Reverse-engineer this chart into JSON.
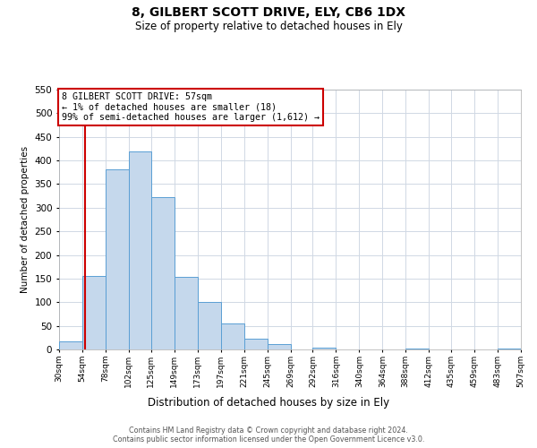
{
  "title": "8, GILBERT SCOTT DRIVE, ELY, CB6 1DX",
  "subtitle": "Size of property relative to detached houses in Ely",
  "xlabel": "Distribution of detached houses by size in Ely",
  "ylabel": "Number of detached properties",
  "bar_color": "#c5d8ec",
  "bar_edge_color": "#5a9fd4",
  "bin_edges": [
    30,
    54,
    78,
    102,
    125,
    149,
    173,
    197,
    221,
    245,
    269,
    292,
    316,
    340,
    364,
    388,
    412,
    435,
    459,
    483,
    507
  ],
  "bin_labels": [
    "30sqm",
    "54sqm",
    "78sqm",
    "102sqm",
    "125sqm",
    "149sqm",
    "173sqm",
    "197sqm",
    "221sqm",
    "245sqm",
    "269sqm",
    "292sqm",
    "316sqm",
    "340sqm",
    "364sqm",
    "388sqm",
    "412sqm",
    "435sqm",
    "459sqm",
    "483sqm",
    "507sqm"
  ],
  "counts": [
    18,
    155,
    382,
    420,
    322,
    153,
    101,
    55,
    22,
    12,
    0,
    3,
    0,
    0,
    0,
    2,
    0,
    0,
    0,
    1
  ],
  "ylim": [
    0,
    550
  ],
  "yticks": [
    0,
    50,
    100,
    150,
    200,
    250,
    300,
    350,
    400,
    450,
    500,
    550
  ],
  "property_line_x": 57,
  "property_line_color": "#cc0000",
  "annotation_text": "8 GILBERT SCOTT DRIVE: 57sqm\n← 1% of detached houses are smaller (18)\n99% of semi-detached houses are larger (1,612) →",
  "annotation_box_color": "#cc0000",
  "footer_line1": "Contains HM Land Registry data © Crown copyright and database right 2024.",
  "footer_line2": "Contains public sector information licensed under the Open Government Licence v3.0.",
  "background_color": "#ffffff",
  "grid_color": "#d0d8e4"
}
